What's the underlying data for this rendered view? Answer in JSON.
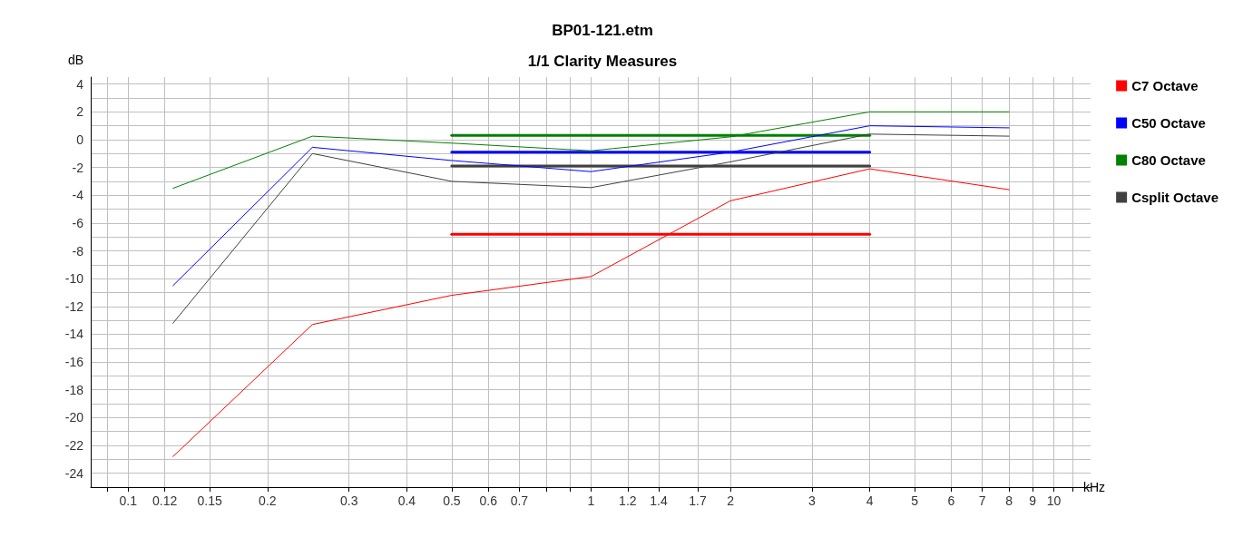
{
  "chart_data": {
    "type": "line",
    "title": "BP01-121.etm",
    "subtitle": "1/1 Clarity Measures",
    "xlabel": "kHz",
    "ylabel": "dB",
    "log": "x",
    "grid": true,
    "legend": "right",
    "marker": "none",
    "line_style": "solid",
    "x": [
      0.125,
      0.25,
      0.5,
      1,
      2,
      4,
      8
    ],
    "xlim": [
      0.083,
      12
    ],
    "xticks": [
      {
        "value": 0.09,
        "label": null
      },
      0.1,
      0.12,
      0.15,
      0.2,
      0.3,
      0.4,
      0.5,
      0.6,
      0.7,
      {
        "value": 0.8,
        "label": null
      },
      {
        "value": 0.9,
        "label": null
      },
      1,
      1.2,
      1.4,
      1.7,
      2,
      3,
      4,
      5,
      6,
      7,
      8,
      9,
      10,
      {
        "value": 11,
        "label": null
      }
    ],
    "ylim": [
      -25,
      4.5
    ],
    "yticks": [
      -24,
      {
        "value": -23,
        "label": null
      },
      -22,
      {
        "value": -21,
        "label": null
      },
      -20,
      {
        "value": -19,
        "label": null
      },
      -18,
      {
        "value": -17,
        "label": null
      },
      -16,
      {
        "value": -15,
        "label": null
      },
      -14,
      {
        "value": -13,
        "label": null
      },
      -12,
      {
        "value": -11,
        "label": null
      },
      -10,
      {
        "value": -9,
        "label": null
      },
      -8,
      {
        "value": -7,
        "label": null
      },
      -6,
      {
        "value": -5,
        "label": null
      },
      -4,
      {
        "value": -3,
        "label": null
      },
      -2,
      {
        "value": -1,
        "label": null
      },
      0,
      {
        "value": 1,
        "label": null
      },
      2,
      {
        "value": 3,
        "label": null
      },
      4
    ],
    "series": [
      {
        "name": "C7 Octave",
        "color": "#ff0000",
        "values": [
          -22.8,
          -13.3,
          -11.2,
          -9.85,
          -4.4,
          -2.1,
          -3.6
        ]
      },
      {
        "name": "C50 Octave",
        "color": "#0000ff",
        "values": [
          -10.5,
          -0.55,
          -1.5,
          -2.3,
          -0.9,
          1.0,
          0.85
        ]
      },
      {
        "name": "C80 Octave",
        "color": "#008000",
        "values": [
          -3.5,
          0.25,
          -0.25,
          -0.8,
          0.2,
          2.0,
          2.0
        ]
      },
      {
        "name": "Csplit Octave",
        "color": "#404040",
        "values": [
          -13.2,
          -1.0,
          -3.0,
          -3.45,
          -1.6,
          0.4,
          0.25
        ]
      },
      {
        "color": "#ff0000",
        "values": [
          null,
          null,
          -6.8,
          -6.8,
          -6.8,
          -6.8,
          null
        ]
      },
      {
        "color": "#0000ff",
        "values": [
          null,
          null,
          -0.9,
          -0.9,
          -0.9,
          -0.9,
          null
        ]
      },
      {
        "color": "#008000",
        "values": [
          null,
          null,
          0.3,
          0.3,
          0.3,
          0.3,
          null
        ]
      },
      {
        "color": "#404040",
        "values": [
          null,
          null,
          -1.9,
          -1.9,
          -1.9,
          -1.9,
          null
        ]
      }
    ]
  }
}
